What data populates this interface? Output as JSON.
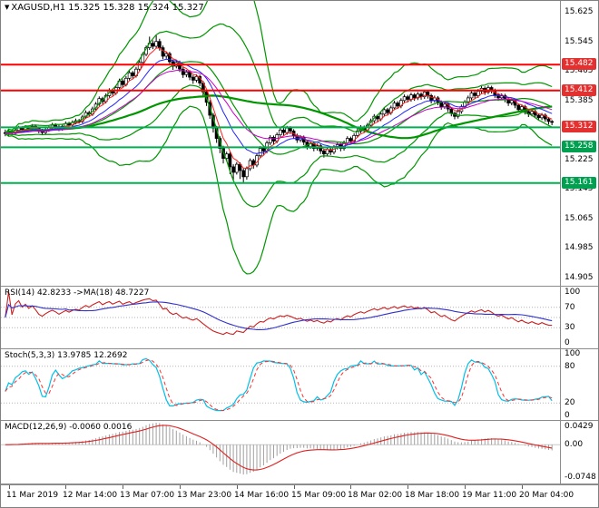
{
  "title": {
    "dropdown_icon": "▼",
    "symbol": "XAGUSD,H1",
    "quote": "15.325 15.328 15.324 15.327"
  },
  "chart_data": {
    "type": "candlestick",
    "title": "XAGUSD,H1",
    "symbol": "XAGUSD",
    "timeframe": "H1",
    "current_bar": {
      "open": 15.325,
      "high": 15.328,
      "low": 15.324,
      "close": 15.327
    },
    "price_axis": {
      "top": 15.65,
      "bottom": 14.885,
      "ticks": [
        "15.625",
        "15.545",
        "15.465",
        "15.385",
        "15.305",
        "15.225",
        "15.145",
        "15.065",
        "14.985",
        "14.905"
      ]
    },
    "time_axis": [
      {
        "bar": 1,
        "label": "11 Mar 2019"
      },
      {
        "bar": 18,
        "label": "12 Mar 14:00"
      },
      {
        "bar": 35,
        "label": "13 Mar 07:00"
      },
      {
        "bar": 52,
        "label": "13 Mar 23:00"
      },
      {
        "bar": 69,
        "label": "14 Mar 16:00"
      },
      {
        "bar": 86,
        "label": "15 Mar 09:00"
      },
      {
        "bar": 103,
        "label": "18 Mar 02:00"
      },
      {
        "bar": 120,
        "label": "18 Mar 18:00"
      },
      {
        "bar": 137,
        "label": "19 Mar 11:00"
      },
      {
        "bar": 154,
        "label": "20 Mar 04:00"
      }
    ],
    "levels": [
      {
        "value": 15.482,
        "label": "15.482",
        "line": "#ff0000",
        "badge": "#e53030",
        "width": 2
      },
      {
        "value": 15.412,
        "label": "15.412",
        "line": "#ff0000",
        "badge": "#e53030",
        "width": 2
      },
      {
        "value": 15.312,
        "label": "15.312",
        "line": "#00b050",
        "badge": "#e53030",
        "width": 2
      },
      {
        "value": 15.258,
        "label": "15.258",
        "line": "#00b050",
        "badge": "#00a050",
        "width": 2
      },
      {
        "value": 15.161,
        "label": "15.161",
        "line": "#00b050",
        "badge": "#00a050",
        "width": 2
      }
    ],
    "candles": [
      [
        15.298,
        15.306,
        15.288,
        15.295
      ],
      [
        15.295,
        15.306,
        15.29,
        15.3
      ],
      [
        15.3,
        15.305,
        15.291,
        15.296
      ],
      [
        15.296,
        15.31,
        15.292,
        15.304
      ],
      [
        15.304,
        15.316,
        15.299,
        15.31
      ],
      [
        15.31,
        15.315,
        15.3,
        15.306
      ],
      [
        15.306,
        15.318,
        15.301,
        15.312
      ],
      [
        15.312,
        15.317,
        15.302,
        15.308
      ],
      [
        15.308,
        15.321,
        15.303,
        15.315
      ],
      [
        15.315,
        15.32,
        15.304,
        15.31
      ],
      [
        15.31,
        15.314,
        15.296,
        15.302
      ],
      [
        15.302,
        15.308,
        15.292,
        15.298
      ],
      [
        15.298,
        15.311,
        15.293,
        15.305
      ],
      [
        15.305,
        15.318,
        15.3,
        15.312
      ],
      [
        15.312,
        15.324,
        15.307,
        15.318
      ],
      [
        15.318,
        15.323,
        15.308,
        15.314
      ],
      [
        15.314,
        15.319,
        15.302,
        15.308
      ],
      [
        15.308,
        15.321,
        15.303,
        15.315
      ],
      [
        15.315,
        15.328,
        15.31,
        15.322
      ],
      [
        15.322,
        15.327,
        15.312,
        15.318
      ],
      [
        15.318,
        15.331,
        15.313,
        15.325
      ],
      [
        15.325,
        15.336,
        15.32,
        15.33
      ],
      [
        15.33,
        15.335,
        15.322,
        15.328
      ],
      [
        15.328,
        15.346,
        15.323,
        15.34
      ],
      [
        15.34,
        15.358,
        15.335,
        15.352
      ],
      [
        15.352,
        15.357,
        15.342,
        15.348
      ],
      [
        15.348,
        15.368,
        15.343,
        15.362
      ],
      [
        15.362,
        15.381,
        15.357,
        15.375
      ],
      [
        15.375,
        15.396,
        15.37,
        15.39
      ],
      [
        15.39,
        15.395,
        15.375,
        15.382
      ],
      [
        15.382,
        15.404,
        15.377,
        15.398
      ],
      [
        15.398,
        15.418,
        15.393,
        15.412
      ],
      [
        15.412,
        15.417,
        15.398,
        15.405
      ],
      [
        15.405,
        15.426,
        15.4,
        15.42
      ],
      [
        15.42,
        15.444,
        15.415,
        15.438
      ],
      [
        15.438,
        15.443,
        15.42,
        15.428
      ],
      [
        15.428,
        15.451,
        15.423,
        15.445
      ],
      [
        15.445,
        15.466,
        15.44,
        15.46
      ],
      [
        15.46,
        15.465,
        15.444,
        15.452
      ],
      [
        15.452,
        15.476,
        15.447,
        15.47
      ],
      [
        15.47,
        15.494,
        15.465,
        15.488
      ],
      [
        15.488,
        15.516,
        15.483,
        15.51
      ],
      [
        15.51,
        15.534,
        15.505,
        15.528
      ],
      [
        15.528,
        15.558,
        15.522,
        15.54
      ],
      [
        15.54,
        15.548,
        15.524,
        15.532
      ],
      [
        15.532,
        15.562,
        15.527,
        15.545
      ],
      [
        15.545,
        15.552,
        15.52,
        15.528
      ],
      [
        15.528,
        15.534,
        15.497,
        15.505
      ],
      [
        15.505,
        15.518,
        15.498,
        15.512
      ],
      [
        15.512,
        15.517,
        15.482,
        15.49
      ],
      [
        15.49,
        15.496,
        15.468,
        15.478
      ],
      [
        15.478,
        15.494,
        15.472,
        15.488
      ],
      [
        15.488,
        15.493,
        15.462,
        15.47
      ],
      [
        15.47,
        15.476,
        15.446,
        15.455
      ],
      [
        15.455,
        15.468,
        15.448,
        15.462
      ],
      [
        15.462,
        15.467,
        15.44,
        15.448
      ],
      [
        15.448,
        15.454,
        15.43,
        15.44
      ],
      [
        15.44,
        15.456,
        15.434,
        15.45
      ],
      [
        15.45,
        15.455,
        15.424,
        15.432
      ],
      [
        15.432,
        15.438,
        15.398,
        15.408
      ],
      [
        15.408,
        15.414,
        15.37,
        15.38
      ],
      [
        15.38,
        15.386,
        15.335,
        15.345
      ],
      [
        15.345,
        15.351,
        15.298,
        15.31
      ],
      [
        15.31,
        15.316,
        15.27,
        15.282
      ],
      [
        15.282,
        15.288,
        15.242,
        15.255
      ],
      [
        15.255,
        15.262,
        15.214,
        15.228
      ],
      [
        15.228,
        15.246,
        15.22,
        15.24
      ],
      [
        15.24,
        15.245,
        15.185,
        15.205
      ],
      [
        15.205,
        15.212,
        15.168,
        15.19
      ],
      [
        15.19,
        15.218,
        15.184,
        15.212
      ],
      [
        15.212,
        15.217,
        15.172,
        15.195
      ],
      [
        15.195,
        15.202,
        15.161,
        15.178
      ],
      [
        15.178,
        15.206,
        15.17,
        15.2
      ],
      [
        15.2,
        15.228,
        15.194,
        15.222
      ],
      [
        15.222,
        15.227,
        15.2,
        15.21
      ],
      [
        15.21,
        15.241,
        15.204,
        15.235
      ],
      [
        15.235,
        15.261,
        15.229,
        15.255
      ],
      [
        15.255,
        15.26,
        15.238,
        15.248
      ],
      [
        15.248,
        15.276,
        15.242,
        15.27
      ],
      [
        15.27,
        15.291,
        15.264,
        15.285
      ],
      [
        15.285,
        15.29,
        15.266,
        15.275
      ],
      [
        15.275,
        15.298,
        15.269,
        15.292
      ],
      [
        15.292,
        15.311,
        15.286,
        15.305
      ],
      [
        15.305,
        15.31,
        15.29,
        15.298
      ],
      [
        15.298,
        15.316,
        15.292,
        15.31
      ],
      [
        15.31,
        15.315,
        15.294,
        15.302
      ],
      [
        15.302,
        15.307,
        15.282,
        15.29
      ],
      [
        15.29,
        15.295,
        15.27,
        15.278
      ],
      [
        15.278,
        15.291,
        15.272,
        15.285
      ],
      [
        15.285,
        15.29,
        15.264,
        15.272
      ],
      [
        15.272,
        15.277,
        15.252,
        15.26
      ],
      [
        15.26,
        15.274,
        15.254,
        15.268
      ],
      [
        15.268,
        15.273,
        15.247,
        15.255
      ],
      [
        15.255,
        15.268,
        15.249,
        15.262
      ],
      [
        15.262,
        15.267,
        15.24,
        15.248
      ],
      [
        15.248,
        15.253,
        15.23,
        15.24
      ],
      [
        15.24,
        15.258,
        15.234,
        15.252
      ],
      [
        15.252,
        15.257,
        15.237,
        15.245
      ],
      [
        15.245,
        15.264,
        15.239,
        15.258
      ],
      [
        15.258,
        15.271,
        15.252,
        15.265
      ],
      [
        15.265,
        15.27,
        15.247,
        15.255
      ],
      [
        15.255,
        15.276,
        15.249,
        15.27
      ],
      [
        15.27,
        15.288,
        15.264,
        15.282
      ],
      [
        15.282,
        15.287,
        15.267,
        15.275
      ],
      [
        15.275,
        15.296,
        15.269,
        15.29
      ],
      [
        15.29,
        15.308,
        15.284,
        15.302
      ],
      [
        15.302,
        15.318,
        15.296,
        15.312
      ],
      [
        15.312,
        15.317,
        15.297,
        15.305
      ],
      [
        15.305,
        15.324,
        15.299,
        15.318
      ],
      [
        15.318,
        15.336,
        15.312,
        15.33
      ],
      [
        15.33,
        15.348,
        15.324,
        15.342
      ],
      [
        15.342,
        15.347,
        15.327,
        15.335
      ],
      [
        15.335,
        15.354,
        15.329,
        15.348
      ],
      [
        15.348,
        15.366,
        15.342,
        15.36
      ],
      [
        15.36,
        15.365,
        15.344,
        15.352
      ],
      [
        15.352,
        15.371,
        15.346,
        15.365
      ],
      [
        15.365,
        15.384,
        15.359,
        15.378
      ],
      [
        15.378,
        15.383,
        15.362,
        15.37
      ],
      [
        15.37,
        15.391,
        15.364,
        15.385
      ],
      [
        15.385,
        15.401,
        15.379,
        15.395
      ],
      [
        15.395,
        15.4,
        15.38,
        15.388
      ],
      [
        15.388,
        15.406,
        15.382,
        15.4
      ],
      [
        15.4,
        15.405,
        15.384,
        15.392
      ],
      [
        15.392,
        15.408,
        15.386,
        15.402
      ],
      [
        15.402,
        15.407,
        15.387,
        15.395
      ],
      [
        15.395,
        15.414,
        15.389,
        15.408
      ],
      [
        15.408,
        15.413,
        15.39,
        15.398
      ],
      [
        15.398,
        15.403,
        15.377,
        15.385
      ],
      [
        15.385,
        15.398,
        15.379,
        15.392
      ],
      [
        15.392,
        15.397,
        15.372,
        15.38
      ],
      [
        15.38,
        15.385,
        15.36,
        15.368
      ],
      [
        15.368,
        15.381,
        15.362,
        15.375
      ],
      [
        15.375,
        15.38,
        15.354,
        15.362
      ],
      [
        15.362,
        15.367,
        15.342,
        15.35
      ],
      [
        15.35,
        15.355,
        15.334,
        15.342
      ],
      [
        15.342,
        15.361,
        15.336,
        15.355
      ],
      [
        15.355,
        15.374,
        15.349,
        15.368
      ],
      [
        15.368,
        15.386,
        15.362,
        15.38
      ],
      [
        15.38,
        15.398,
        15.374,
        15.392
      ],
      [
        15.392,
        15.411,
        15.386,
        15.405
      ],
      [
        15.405,
        15.41,
        15.39,
        15.398
      ],
      [
        15.398,
        15.416,
        15.392,
        15.41
      ],
      [
        15.41,
        15.424,
        15.404,
        15.418
      ],
      [
        15.418,
        15.423,
        15.4,
        15.408
      ],
      [
        15.408,
        15.426,
        15.402,
        15.42
      ],
      [
        15.42,
        15.425,
        15.404,
        15.412
      ],
      [
        15.412,
        15.417,
        15.392,
        15.4
      ],
      [
        15.4,
        15.405,
        15.384,
        15.392
      ],
      [
        15.392,
        15.404,
        15.386,
        15.398
      ],
      [
        15.398,
        15.403,
        15.38,
        15.388
      ],
      [
        15.388,
        15.393,
        15.37,
        15.378
      ],
      [
        15.378,
        15.391,
        15.372,
        15.385
      ],
      [
        15.385,
        15.39,
        15.364,
        15.372
      ],
      [
        15.372,
        15.377,
        15.352,
        15.36
      ],
      [
        15.36,
        15.374,
        15.354,
        15.368
      ],
      [
        15.368,
        15.373,
        15.347,
        15.355
      ],
      [
        15.355,
        15.36,
        15.34,
        15.348
      ],
      [
        15.348,
        15.361,
        15.342,
        15.355
      ],
      [
        15.355,
        15.36,
        15.337,
        15.345
      ],
      [
        15.345,
        15.35,
        15.33,
        15.338
      ],
      [
        15.338,
        15.351,
        15.332,
        15.345
      ],
      [
        15.345,
        15.35,
        15.327,
        15.335
      ],
      [
        15.335,
        15.34,
        15.32,
        15.328
      ],
      [
        15.328,
        15.332,
        15.318,
        15.327
      ]
    ],
    "indicators": {
      "bollinger": {
        "period": 20,
        "dev_inner": 2.0,
        "dev_outer": 3.8,
        "color": "#009600"
      },
      "slow_ma": {
        "period": 60,
        "color": "#009600",
        "width": 2.2
      },
      "emas": [
        {
          "period": 5,
          "color": "#ff2020"
        },
        {
          "period": 13,
          "color": "#2424ff"
        },
        {
          "period": 24,
          "color": "#cc00cc"
        }
      ],
      "rsi": {
        "header": "RSI(14) 42.8233 ->MA(18) 48.7227",
        "period": 14,
        "ma": 18,
        "ticks": [
          "100",
          "70",
          "30",
          "0"
        ],
        "tick_values": [
          100,
          70,
          30,
          0
        ],
        "levels": [
          70,
          50,
          30
        ],
        "range": [
          110,
          -10
        ],
        "color": "#cc2020",
        "ma_color": "#3030cc"
      },
      "stoch": {
        "header": "Stoch(5,3,3) 13.9785 12.2692",
        "k": 5,
        "slow": 3,
        "d": 3,
        "ticks": [
          "100",
          "80",
          "20",
          "0"
        ],
        "tick_values": [
          100,
          80,
          20,
          0
        ],
        "levels": [
          80,
          20
        ],
        "range": [
          108,
          -8
        ],
        "k_color": "#00c0e8",
        "d_color": "#ff3030"
      },
      "macd": {
        "header": "MACD(12,26,9) -0.0060 0.0016",
        "fast": 12,
        "slow": 26,
        "signal": 9,
        "ticks": [
          "0.0429",
          "0.00",
          "-0.0748"
        ],
        "tick_values": [
          0.0429,
          0,
          -0.0748
        ],
        "range": [
          0.055,
          -0.092
        ],
        "hist_color": "#a0a0a0",
        "signal_color": "#e02020"
      }
    }
  }
}
